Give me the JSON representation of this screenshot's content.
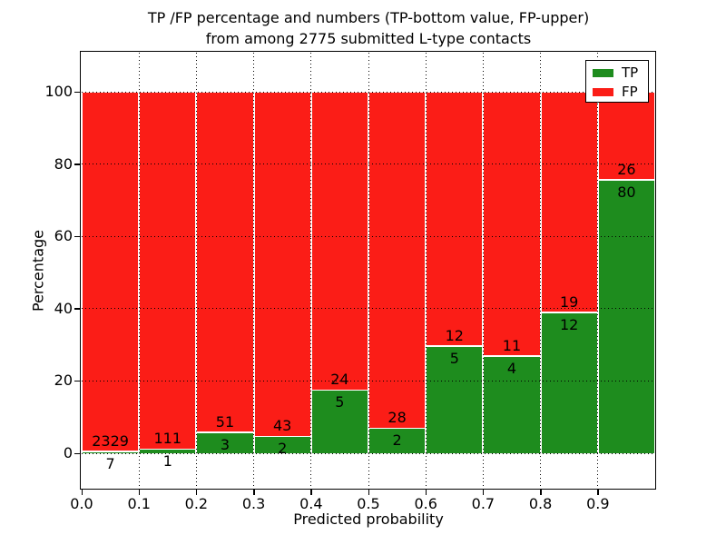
{
  "figure": {
    "title_line1": "TP /FP percentage and numbers (TP-bottom value, FP-upper)",
    "title_line2": "from among 2775 submitted L-type contacts"
  },
  "chart_data": {
    "type": "bar",
    "stacked": true,
    "normalized": "each bin scaled to 100%",
    "title": "TP /FP percentage and numbers (TP-bottom value, FP-upper)\nfrom among 2775 submitted L-type contacts",
    "xlabel": "Predicted probability",
    "ylabel": "Percentage",
    "total_submitted": 2775,
    "xlim": [
      0.0,
      1.0
    ],
    "ylim": [
      -10,
      110.5
    ],
    "grid": "dotted",
    "x_tick_labels": [
      "0.0",
      "0.1",
      "0.2",
      "0.3",
      "0.4",
      "0.5",
      "0.6",
      "0.7",
      "0.8",
      "0.9"
    ],
    "y_ticks": [
      0,
      20,
      40,
      60,
      80,
      100
    ],
    "y_tick_labels": [
      "0",
      "20",
      "40",
      "60",
      "80",
      "100"
    ],
    "categories": [
      "0.0-0.1",
      "0.1-0.2",
      "0.2-0.3",
      "0.3-0.4",
      "0.4-0.5",
      "0.5-0.6",
      "0.6-0.7",
      "0.7-0.8",
      "0.8-0.9",
      "0.9-1.0"
    ],
    "series": [
      {
        "name": "TP",
        "color": "#1e8c1e",
        "counts": [
          7,
          1,
          3,
          2,
          5,
          2,
          5,
          4,
          12,
          80
        ]
      },
      {
        "name": "FP",
        "color": "#fb1d17",
        "counts": [
          2329,
          111,
          51,
          43,
          24,
          28,
          12,
          11,
          19,
          26
        ]
      }
    ],
    "tp_percent_by_bin": [
      0.3,
      0.89,
      5.56,
      4.44,
      17.24,
      6.67,
      29.41,
      26.67,
      38.71,
      75.47
    ],
    "legend": {
      "position": "upper right",
      "entries": [
        {
          "label": "TP",
          "color": "#1e8c1e"
        },
        {
          "label": "FP",
          "color": "#fb1d17"
        }
      ]
    }
  }
}
